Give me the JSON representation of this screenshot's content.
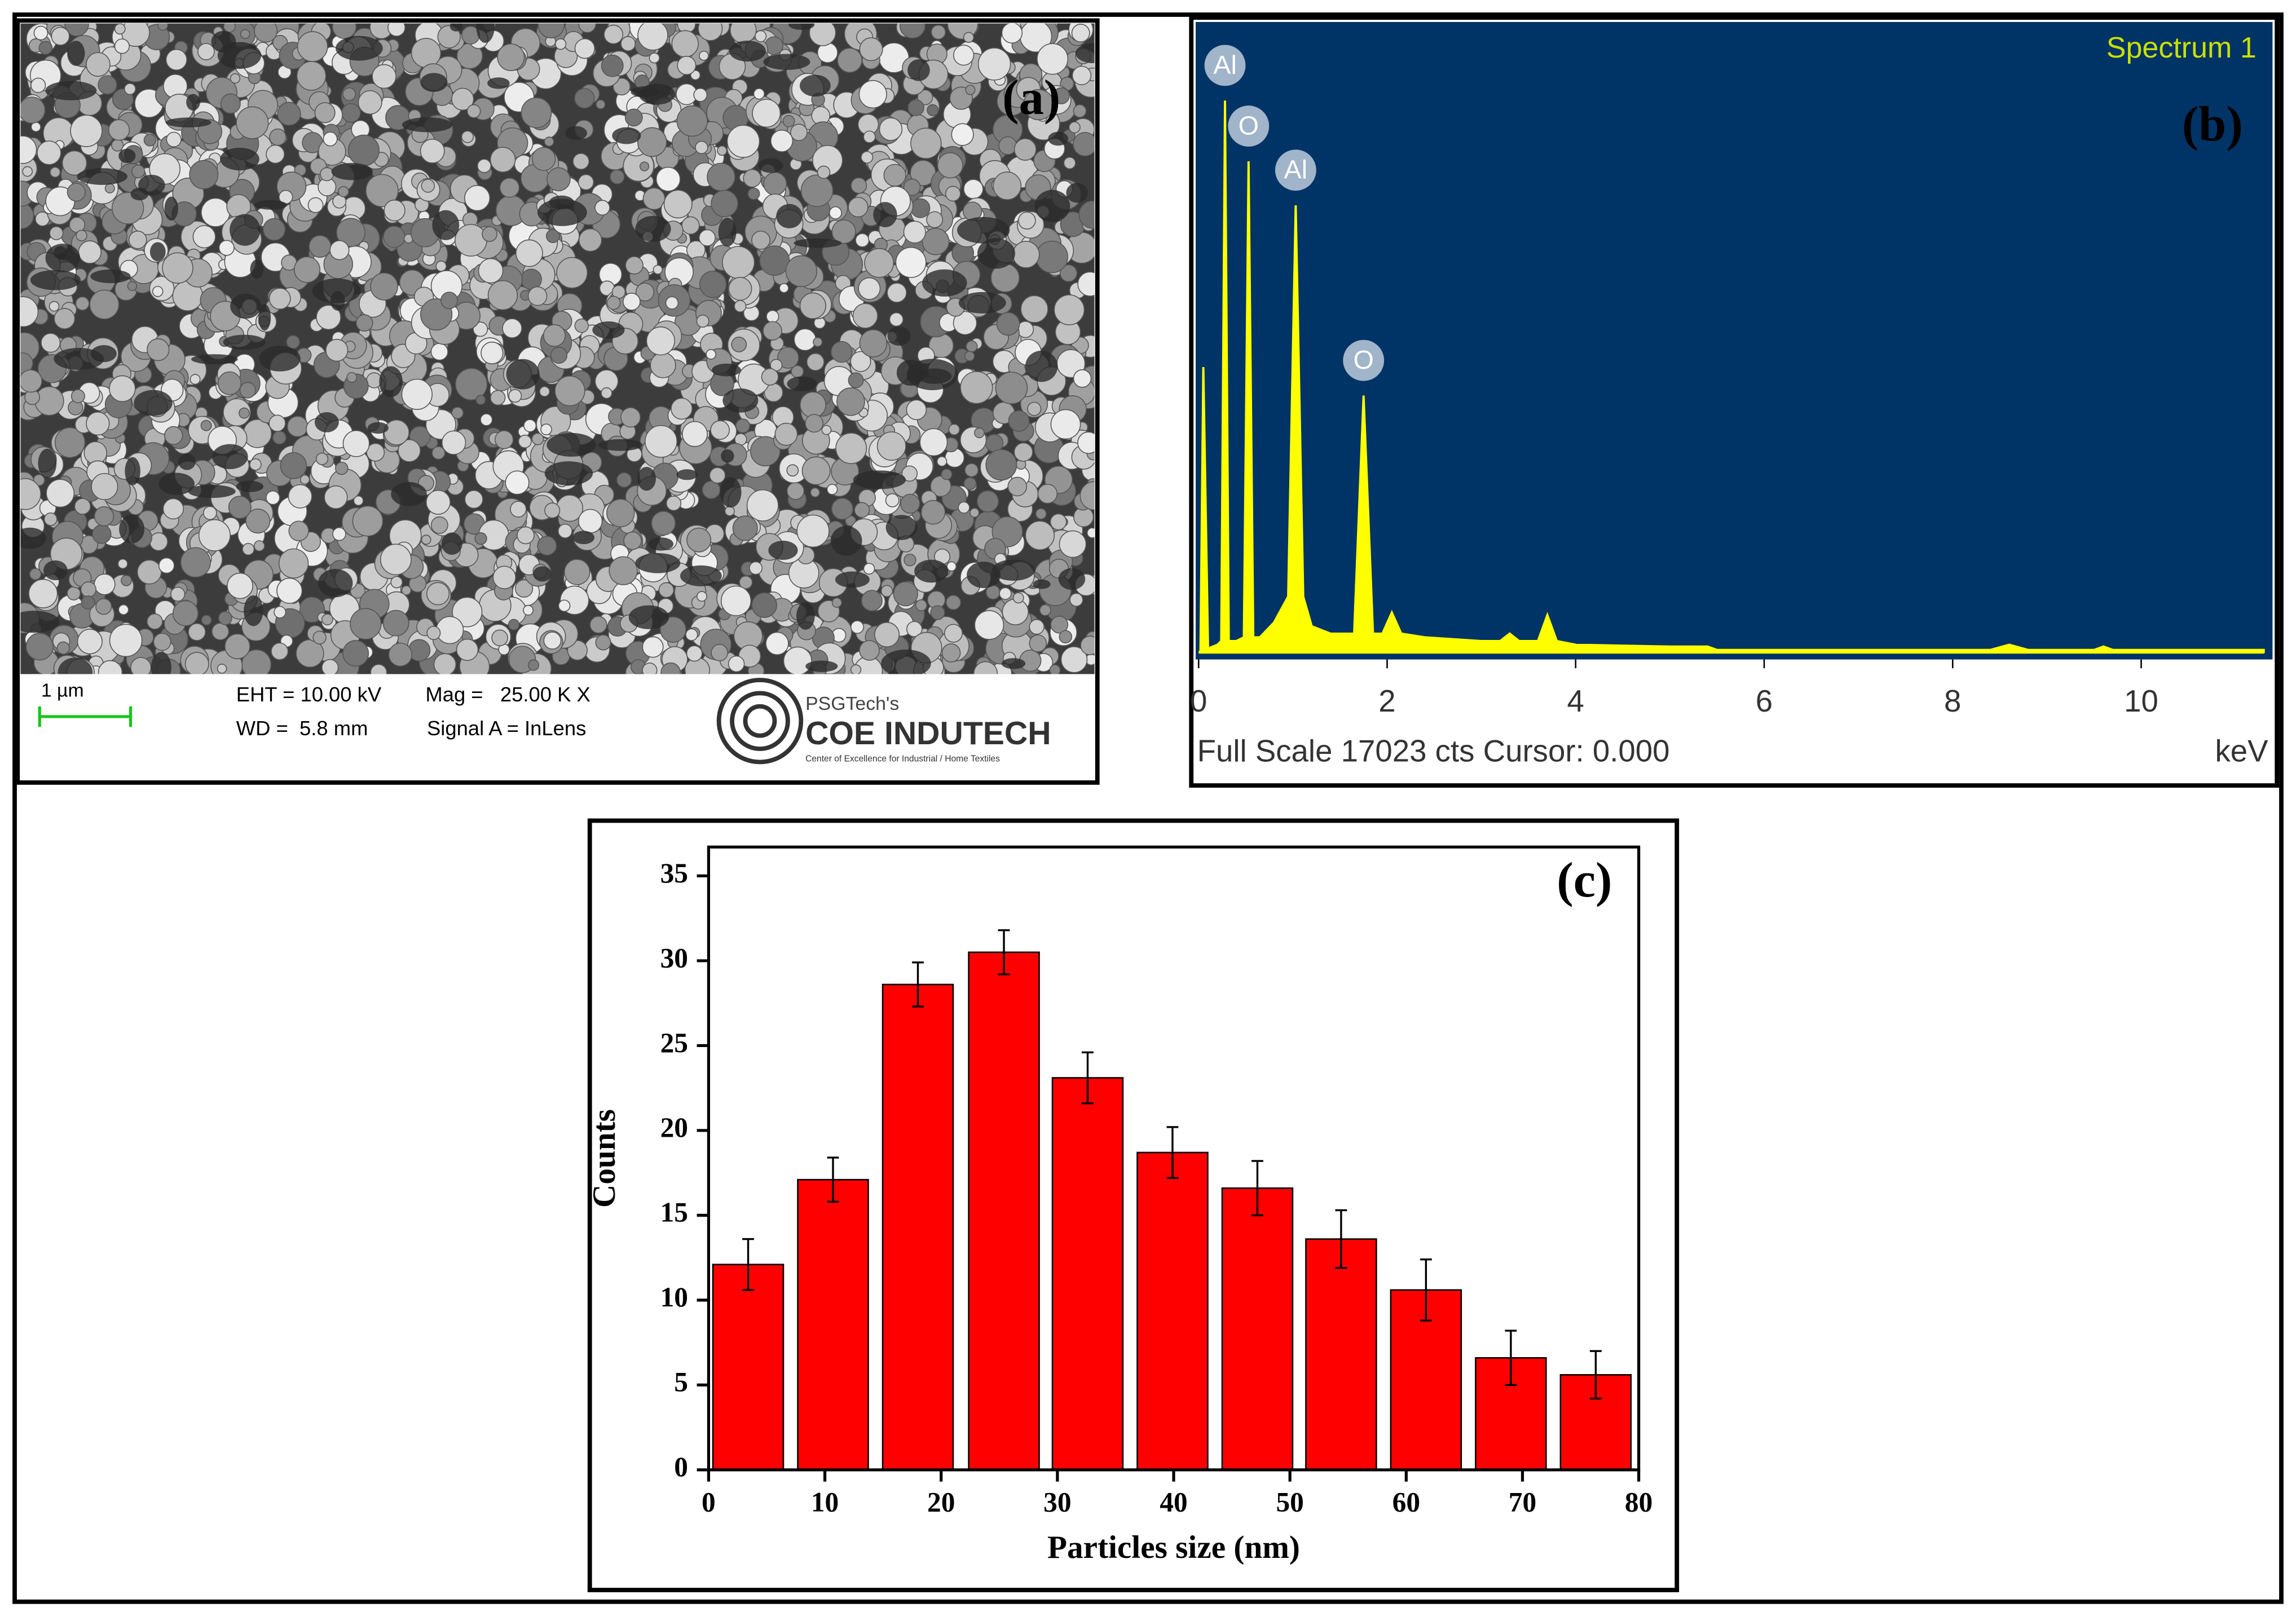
{
  "panel_a": {
    "label": "(a)",
    "scale_bar": "1 µm",
    "eht": "EHT = 10.00 kV",
    "mag": "Mag =   25.00 K X",
    "wd": "WD =  5.8 mm",
    "signal": "Signal A = InLens",
    "logo_top": "PSGTech's",
    "logo_main": "COE INDUTECH",
    "logo_sub": "Center of Excellence for Industrial / Home Textiles"
  },
  "chart_data": [
    {
      "type": "line",
      "panel_label": "(b)",
      "title": "Spectrum 1",
      "footer": "Full Scale 17023 cts Cursor: 0.000",
      "x_label": "keV",
      "color": "#ffff00",
      "x": [
        0.02,
        0.05,
        0.1,
        0.2,
        0.24,
        0.28,
        0.32,
        0.4,
        0.48,
        0.53,
        0.58,
        0.65,
        0.8,
        0.95,
        1.03,
        1.11,
        1.2,
        1.4,
        1.65,
        1.75,
        1.85,
        1.95,
        2.05,
        2.15,
        2.4,
        3.0,
        3.2,
        3.3,
        3.4,
        3.6,
        3.7,
        3.8,
        4.0,
        5.0,
        5.4,
        5.5,
        7.0,
        8.4,
        8.6,
        8.8,
        9.5,
        9.6,
        9.7,
        11.3
      ],
      "values": [
        100,
        7700,
        100,
        200,
        300,
        14900,
        300,
        300,
        400,
        13260,
        400,
        400,
        800,
        1500,
        12070,
        1500,
        700,
        500,
        500,
        6930,
        500,
        500,
        1070,
        500,
        400,
        300,
        300,
        500,
        300,
        300,
        1000,
        300,
        200,
        150,
        150,
        60,
        60,
        60,
        200,
        60,
        60,
        150,
        60,
        60
      ],
      "xlim": [
        0,
        11.3
      ],
      "ylim": [
        0,
        17023
      ],
      "xticks": [
        0,
        2,
        4,
        6,
        8,
        10
      ],
      "peak_labels": [
        {
          "label": "Al",
          "x": 0.28
        },
        {
          "label": "O",
          "x": 0.53
        },
        {
          "label": "Al",
          "x": 1.03
        },
        {
          "label": "O",
          "x": 1.75
        }
      ]
    },
    {
      "type": "bar",
      "panel_label": "(c)",
      "x_label": "Particles size (nm)",
      "y_label": "Counts",
      "color": "#ff0000",
      "x": [
        3.4,
        10.7,
        18,
        25.4,
        32.6,
        39.9,
        47.2,
        54.4,
        61.7,
        69,
        76.3
      ],
      "values": [
        12.1,
        17.1,
        28.6,
        30.5,
        23.1,
        18.7,
        16.6,
        13.6,
        10.6,
        6.6,
        5.6
      ],
      "errors": [
        1.5,
        1.3,
        1.3,
        1.3,
        1.5,
        1.5,
        1.6,
        1.7,
        1.8,
        1.6,
        1.4
      ],
      "xlim": [
        0,
        80
      ],
      "ylim": [
        0,
        36.7
      ],
      "xticks": [
        0,
        10,
        20,
        30,
        40,
        50,
        60,
        70,
        80
      ],
      "yticks": [
        0,
        5,
        10,
        15,
        20,
        25,
        30,
        35
      ]
    }
  ]
}
